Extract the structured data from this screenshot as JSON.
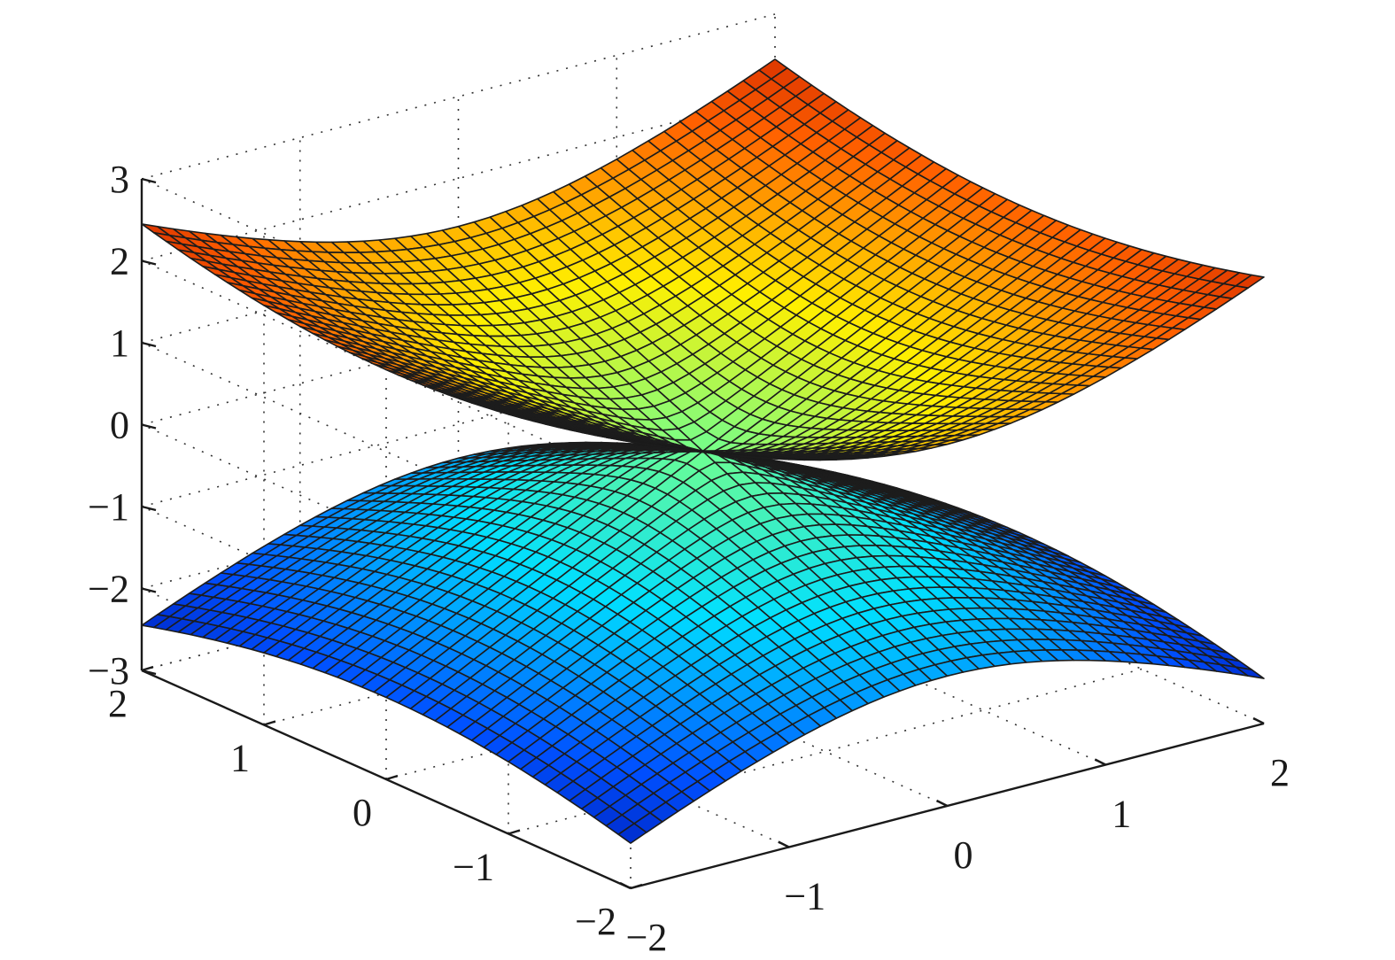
{
  "chart_data": {
    "type": "surface3d",
    "title": "",
    "xlabel": "",
    "ylabel": "",
    "zlabel": "",
    "x_range": [
      -2,
      2
    ],
    "y_range": [
      -2,
      2
    ],
    "z_range": [
      -3,
      3
    ],
    "x_ticks": [
      -2,
      -1,
      0,
      1,
      2
    ],
    "y_ticks": [
      -2,
      -1,
      0,
      1,
      2
    ],
    "z_ticks": [
      -3,
      -2,
      -1,
      0,
      1,
      2,
      3
    ],
    "x_tick_labels": [
      "−2",
      "−1",
      "0",
      "1",
      "2"
    ],
    "y_tick_labels": [
      "−2",
      "−1",
      "0",
      "1",
      "2"
    ],
    "z_tick_labels": [
      "−3",
      "−2",
      "−1",
      "0",
      "1",
      "2",
      "3"
    ],
    "grid": true,
    "grid_resolution": 41,
    "colormap": "jet",
    "colormap_stops": [
      "#00008f",
      "#0050ff",
      "#00dfff",
      "#70ff8f",
      "#ffef00",
      "#ff6000",
      "#b00000"
    ],
    "series": [
      {
        "surface": "upper",
        "equation": "z = sqrt(x^2 + y^2 / 2)",
        "z_at_origin": 0,
        "z_max": 2.45
      },
      {
        "surface": "lower",
        "equation": "z = -sqrt(x^2 + y^2 / 2)",
        "z_at_origin": 0,
        "z_min": -2.45
      }
    ]
  }
}
